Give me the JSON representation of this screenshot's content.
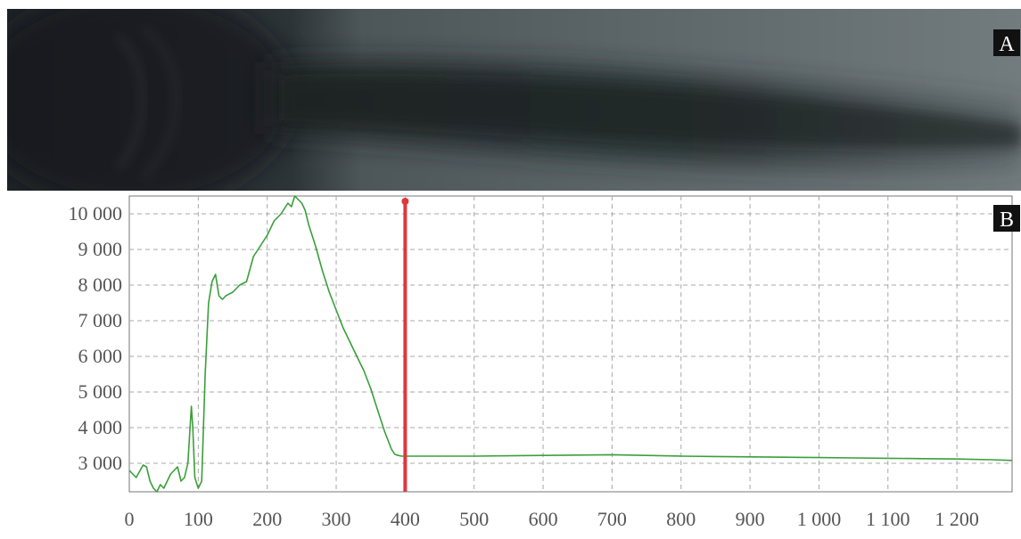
{
  "panel_labels": {
    "a": "A",
    "b": "B"
  },
  "image_panel": {
    "kind": "grayscale photograph of a dark plume"
  },
  "colors": {
    "series": "#3a9f3a",
    "marker": "#e0363c",
    "grid": "#a8a8a8",
    "axis_text": "#555555",
    "label_bg": "#111111"
  },
  "chart_data": {
    "type": "line",
    "title": "",
    "xlabel": "",
    "ylabel": "",
    "xlim": [
      0,
      1280
    ],
    "ylim": [
      2200,
      10500
    ],
    "grid": true,
    "legend": "none",
    "x_ticks": [
      {
        "value": 0,
        "label": "0"
      },
      {
        "value": 100,
        "label": "100"
      },
      {
        "value": 200,
        "label": "200"
      },
      {
        "value": 300,
        "label": "300"
      },
      {
        "value": 400,
        "label": "400"
      },
      {
        "value": 500,
        "label": "500"
      },
      {
        "value": 600,
        "label": "600"
      },
      {
        "value": 700,
        "label": "700"
      },
      {
        "value": 800,
        "label": "800"
      },
      {
        "value": 900,
        "label": "900"
      },
      {
        "value": 1000,
        "label": "1 000"
      },
      {
        "value": 1100,
        "label": "1 100"
      },
      {
        "value": 1200,
        "label": "1 200"
      }
    ],
    "y_ticks": [
      {
        "value": 3000,
        "label": "3 000"
      },
      {
        "value": 4000,
        "label": "4 000"
      },
      {
        "value": 5000,
        "label": "5 000"
      },
      {
        "value": 6000,
        "label": "6 000"
      },
      {
        "value": 7000,
        "label": "7 000"
      },
      {
        "value": 8000,
        "label": "8 000"
      },
      {
        "value": 9000,
        "label": "9 000"
      },
      {
        "value": 10000,
        "label": "10 000"
      }
    ],
    "marker_x": 400,
    "series": [
      {
        "x": [
          0,
          10,
          20,
          25,
          30,
          35,
          40,
          45,
          50,
          60,
          70,
          75,
          80,
          85,
          90,
          92,
          95,
          100,
          105,
          110,
          115,
          120,
          125,
          130,
          135,
          140,
          150,
          160,
          170,
          180,
          190,
          200,
          210,
          220,
          230,
          235,
          240,
          245,
          250,
          255,
          260,
          270,
          280,
          290,
          300,
          310,
          320,
          330,
          340,
          350,
          360,
          370,
          380,
          385,
          390,
          395,
          400,
          450,
          500,
          550,
          600,
          650,
          700,
          750,
          800,
          850,
          900,
          950,
          1000,
          1050,
          1100,
          1150,
          1200,
          1250,
          1280
        ],
        "y": [
          2800,
          2600,
          2950,
          2900,
          2500,
          2300,
          2200,
          2400,
          2300,
          2700,
          2900,
          2500,
          2600,
          3000,
          4600,
          4000,
          2600,
          2300,
          2500,
          5500,
          7500,
          8100,
          8300,
          7700,
          7600,
          7700,
          7800,
          8000,
          8100,
          8800,
          9100,
          9400,
          9800,
          10000,
          10300,
          10200,
          10500,
          10400,
          10300,
          10100,
          9700,
          9100,
          8400,
          7800,
          7300,
          6800,
          6400,
          6000,
          5600,
          5100,
          4500,
          3900,
          3400,
          3250,
          3220,
          3200,
          3200,
          3200,
          3200,
          3210,
          3220,
          3230,
          3240,
          3220,
          3200,
          3190,
          3180,
          3170,
          3160,
          3150,
          3140,
          3130,
          3120,
          3100,
          3080
        ]
      }
    ]
  }
}
